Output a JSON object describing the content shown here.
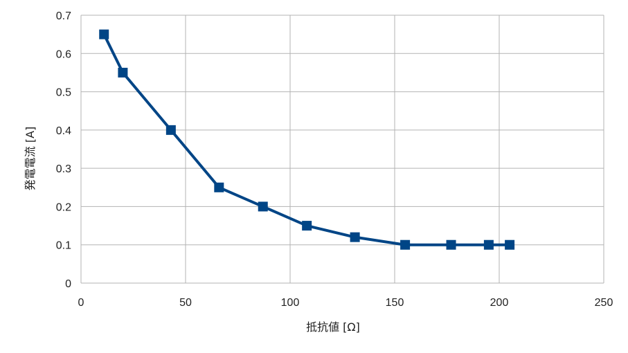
{
  "chart_data": {
    "type": "line",
    "title": "",
    "xlabel": "抵抗値 [Ω]",
    "ylabel": "発電電流 [A]",
    "xlim": [
      0,
      250
    ],
    "ylim": [
      0,
      0.7
    ],
    "xticks": [
      0,
      50,
      100,
      150,
      200,
      250
    ],
    "yticks": [
      0,
      0.1,
      0.2,
      0.3,
      0.4,
      0.5,
      0.6,
      0.7
    ],
    "xtick_labels": [
      "0",
      "50",
      "100",
      "150",
      "200",
      "250"
    ],
    "ytick_labels": [
      "0",
      "0.1",
      "0.2",
      "0.3",
      "0.4",
      "0.5",
      "0.6",
      "0.7"
    ],
    "grid": true,
    "legend": "none",
    "marker": "square",
    "series": [
      {
        "color": "#004586",
        "x": [
          11,
          20,
          43,
          66,
          87,
          108,
          131,
          155,
          177,
          195,
          205
        ],
        "y": [
          0.65,
          0.55,
          0.4,
          0.25,
          0.2,
          0.15,
          0.12,
          0.1,
          0.1,
          0.1,
          0.1
        ]
      }
    ]
  }
}
